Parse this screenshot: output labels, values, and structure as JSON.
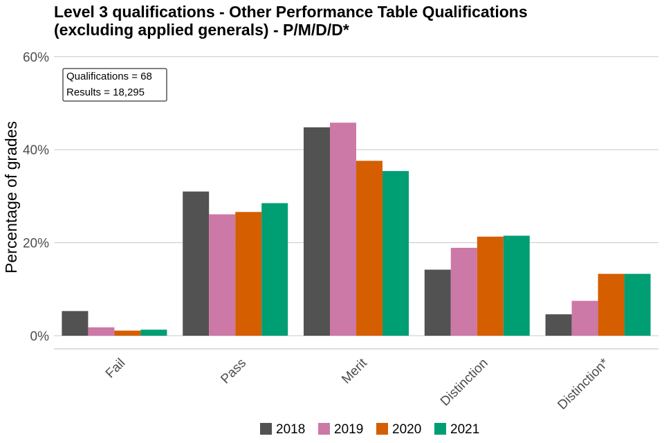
{
  "chart_data": {
    "type": "bar",
    "title_lines": [
      "Level 3 qualifications  - Other Performance Table Qualifications",
      "(excluding applied generals) - P/M/D/D*"
    ],
    "xlabel": "",
    "ylabel": "Percentage of grades",
    "ylim": [
      0,
      60
    ],
    "yticks": [
      0,
      20,
      40,
      60
    ],
    "ytick_labels": [
      "0%",
      "20%",
      "40%",
      "60%"
    ],
    "grid": true,
    "legend_position": "bottom",
    "annotation": [
      "Qualifications = 68",
      "Results = 18,295"
    ],
    "categories": [
      "Fail",
      "Pass",
      "Merit",
      "Distinction",
      "Distinction*"
    ],
    "series": [
      {
        "name": "2018",
        "color": "#525252",
        "values": [
          5.3,
          31.0,
          44.8,
          14.2,
          4.6
        ]
      },
      {
        "name": "2019",
        "color": "#cc79a7",
        "values": [
          1.8,
          26.1,
          45.8,
          18.9,
          7.5
        ]
      },
      {
        "name": "2020",
        "color": "#d55e00",
        "values": [
          1.1,
          26.6,
          37.6,
          21.3,
          13.3
        ]
      },
      {
        "name": "2021",
        "color": "#009e73",
        "values": [
          1.3,
          28.5,
          35.4,
          21.5,
          13.3
        ]
      }
    ]
  }
}
